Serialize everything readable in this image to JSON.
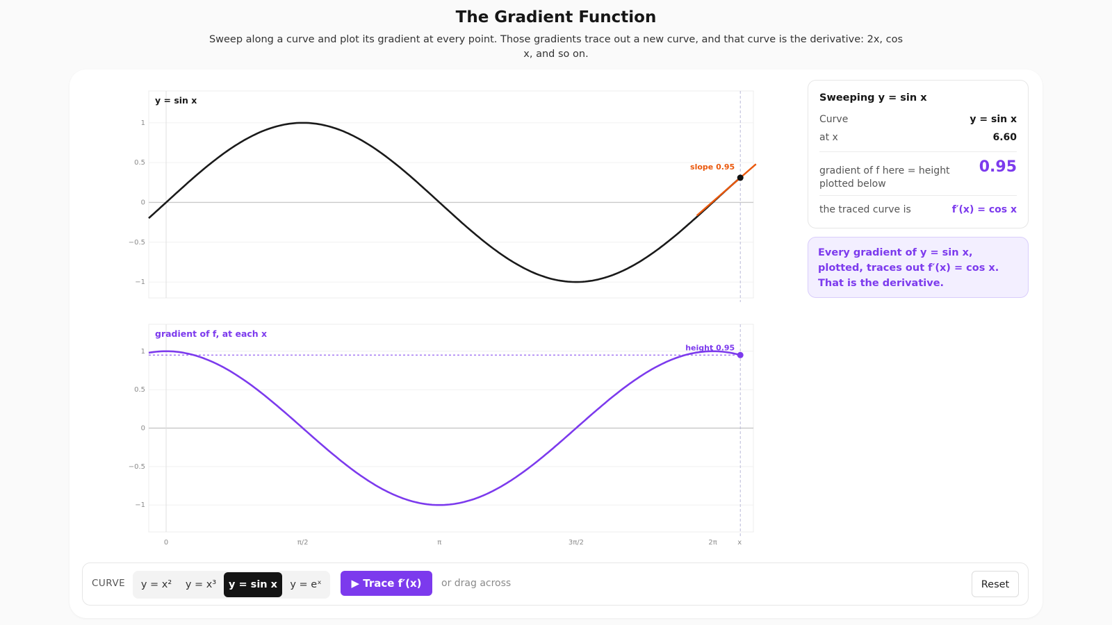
{
  "header": {
    "title": "The Gradient Function",
    "subtitle": "Sweep along a curve and plot its gradient at every point. Those gradients trace out a new curve, and that curve is the derivative: 2x, cos x, and so on."
  },
  "colors": {
    "accent": "#7c3aed",
    "curve": "#1a1a1a",
    "tangent": "#ea580c",
    "active_segment": "#141414"
  },
  "chart_data": [
    {
      "type": "line",
      "title": "y = sin x",
      "function": "sin",
      "xlim": [
        -0.2,
        6.75
      ],
      "ylim": [
        -1.2,
        1.4
      ],
      "yticks": [
        "1",
        "0.5",
        "0",
        "−0.5",
        "−1"
      ],
      "ytick_values": [
        1,
        0.5,
        0,
        -0.5,
        -1
      ],
      "xticks": [
        "0",
        "π/2",
        "π",
        "3π/2",
        "2π"
      ],
      "xtick_values": [
        0,
        1.5708,
        3.1416,
        4.7124,
        6.2832
      ],
      "xlabel": "x",
      "grid": true,
      "marker": {
        "x": 6.6,
        "y": 0.31,
        "slope": 0.95,
        "label": "slope 0.95"
      }
    },
    {
      "type": "line",
      "title": "gradient of f, at each x",
      "function": "cos",
      "xlim": [
        -0.2,
        6.75
      ],
      "ylim": [
        -1.35,
        1.35
      ],
      "yticks": [
        "1",
        "0.5",
        "0",
        "−0.5",
        "−1"
      ],
      "ytick_values": [
        1,
        0.5,
        0,
        -0.5,
        -1
      ],
      "xticks": [
        "0",
        "π/2",
        "π",
        "3π/2",
        "2π"
      ],
      "xtick_values": [
        0,
        1.5708,
        3.1416,
        4.7124,
        6.2832
      ],
      "xlabel": "x",
      "grid": true,
      "marker": {
        "x": 6.6,
        "y": 0.95,
        "label": "height 0.95"
      }
    }
  ],
  "info": {
    "heading": "Sweeping y = sin x",
    "curve_label": "Curve",
    "curve_value": "y = sin x",
    "at_x_label": "at x",
    "at_x_value": "6.60",
    "gradient_label": "gradient of f here = height plotted below",
    "gradient_value": "0.95",
    "traced_label": "the traced curve is",
    "traced_value": "f′(x) = cos x"
  },
  "note": "Every gradient of y = sin x, plotted, traces out f′(x) = cos x. That is the derivative.",
  "controls": {
    "label": "CURVE",
    "options": [
      "y = x²",
      "y = x³",
      "y = sin x",
      "y = eˣ"
    ],
    "selected": "y = sin x",
    "trace_label": "▶ Trace f′(x)",
    "hint": "or drag across",
    "reset_label": "Reset"
  }
}
